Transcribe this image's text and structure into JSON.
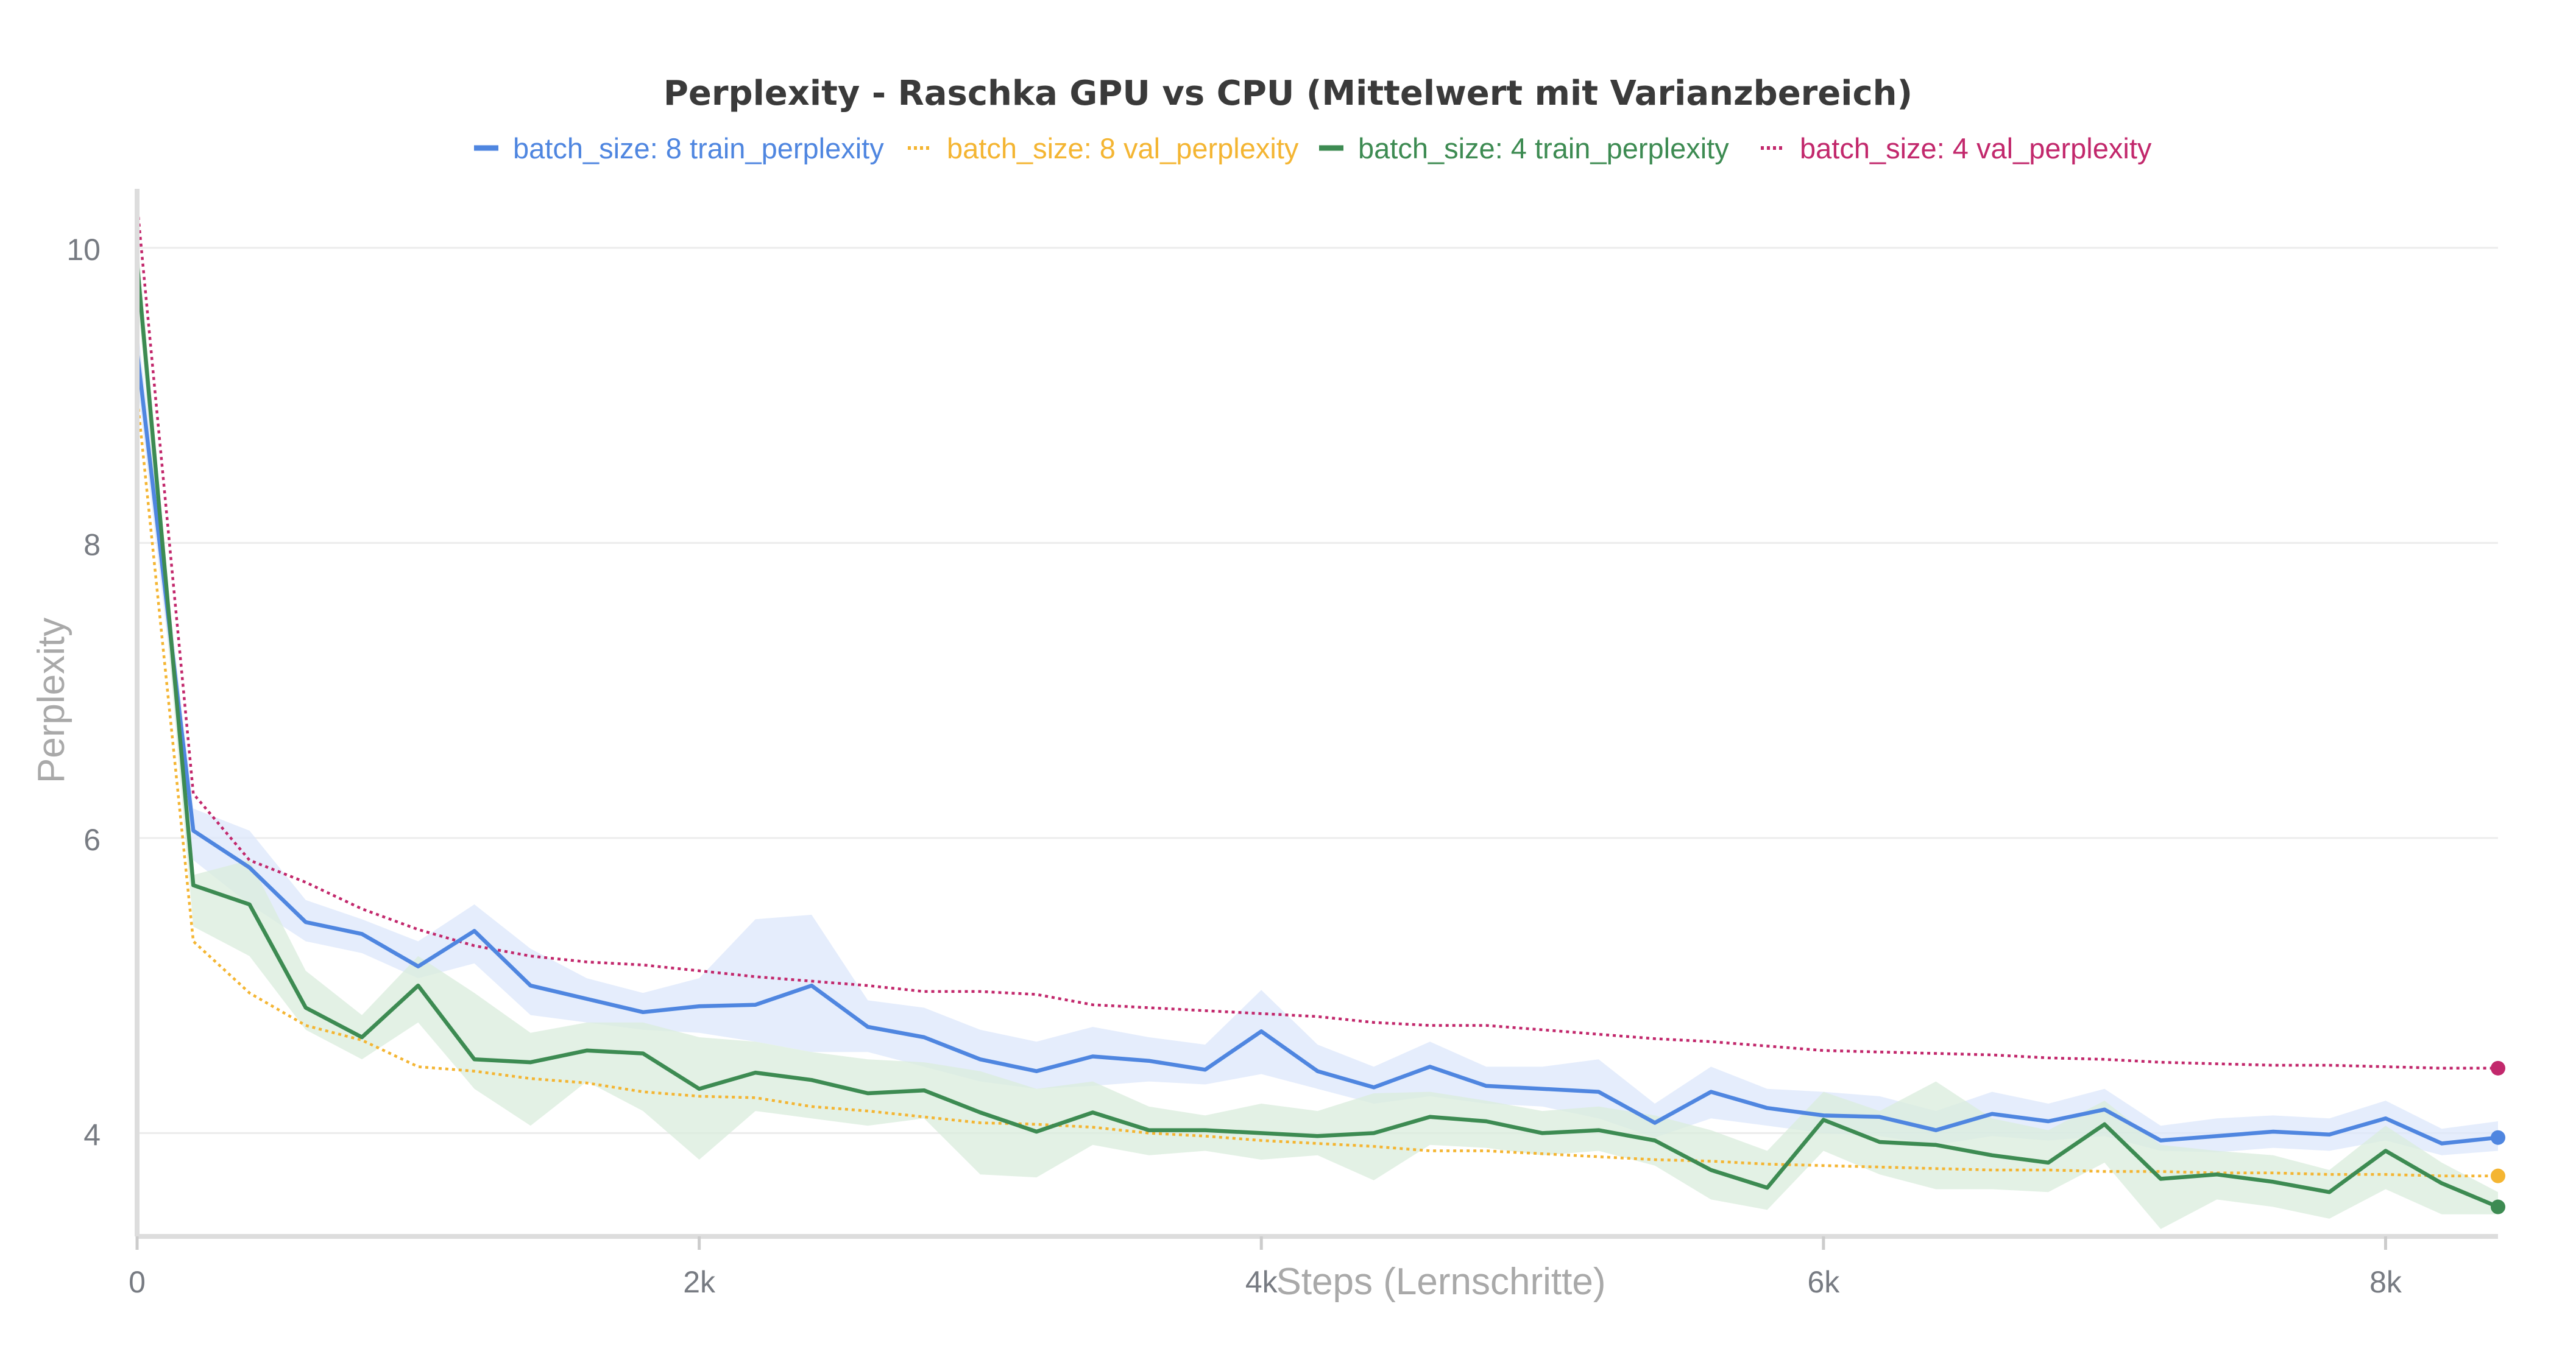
{
  "chart_data": {
    "type": "line",
    "title": "Perplexity - Raschka GPU vs CPU (Mittelwert mit Varianzbereich)",
    "xlabel": "Steps (Lernschritte)",
    "ylabel": "Perplexity",
    "xlim": [
      0,
      8400
    ],
    "ylim": [
      3.3,
      10.4
    ],
    "x_ticks": [
      0,
      2000,
      4000,
      6000,
      8000
    ],
    "x_tick_labels": [
      "0",
      "2k",
      "4k",
      "6k",
      "8k"
    ],
    "y_ticks": [
      4,
      6,
      8,
      10
    ],
    "y_tick_labels": [
      "4",
      "6",
      "8",
      "10"
    ],
    "grid": true,
    "legend_position": "top",
    "x": [
      0,
      200,
      400,
      600,
      800,
      1000,
      1200,
      1400,
      1600,
      1800,
      2000,
      2200,
      2400,
      2600,
      2800,
      3000,
      3200,
      3400,
      3600,
      3800,
      4000,
      4200,
      4400,
      4600,
      4800,
      5000,
      5200,
      5400,
      5600,
      5800,
      6000,
      6200,
      6400,
      6600,
      6800,
      7000,
      7200,
      7400,
      7600,
      7800,
      8000,
      8200,
      8400
    ],
    "series": [
      {
        "name": "batch_size: 8 train_perplexity",
        "color": "#4f86e0",
        "style": "solid",
        "band_color": "#dce7fb",
        "values": [
          9.3,
          6.05,
          5.8,
          5.43,
          5.35,
          5.13,
          5.37,
          5.0,
          4.91,
          4.82,
          4.86,
          4.87,
          5.0,
          4.72,
          4.65,
          4.5,
          4.42,
          4.52,
          4.49,
          4.43,
          4.69,
          4.42,
          4.31,
          4.45,
          4.32,
          4.3,
          4.28,
          4.07,
          4.28,
          4.17,
          4.12,
          4.11,
          4.02,
          4.13,
          4.08,
          4.16,
          3.95,
          3.98,
          4.01,
          3.99,
          4.1,
          3.93,
          3.97
        ],
        "lower": [
          9.1,
          5.85,
          5.55,
          5.3,
          5.22,
          5.05,
          5.15,
          4.8,
          4.75,
          4.7,
          4.68,
          4.62,
          4.55,
          4.55,
          4.45,
          4.35,
          4.3,
          4.32,
          4.35,
          4.33,
          4.4,
          4.3,
          4.2,
          4.25,
          4.2,
          4.18,
          4.1,
          3.97,
          4.1,
          4.05,
          4.0,
          3.98,
          3.92,
          3.98,
          3.95,
          3.98,
          3.88,
          3.87,
          3.9,
          3.88,
          3.95,
          3.85,
          3.88
        ],
        "upper": [
          9.5,
          6.2,
          6.05,
          5.58,
          5.45,
          5.3,
          5.55,
          5.25,
          5.05,
          4.95,
          5.05,
          5.45,
          5.48,
          4.9,
          4.85,
          4.7,
          4.62,
          4.72,
          4.65,
          4.6,
          4.97,
          4.6,
          4.45,
          4.62,
          4.45,
          4.45,
          4.5,
          4.2,
          4.45,
          4.3,
          4.28,
          4.25,
          4.15,
          4.28,
          4.2,
          4.3,
          4.05,
          4.1,
          4.12,
          4.1,
          4.22,
          4.03,
          4.08
        ]
      },
      {
        "name": "batch_size: 8 val_perplexity",
        "color": "#f4b532",
        "style": "dotted",
        "values": [
          9.0,
          5.3,
          4.95,
          4.73,
          4.63,
          4.45,
          4.42,
          4.37,
          4.34,
          4.28,
          4.25,
          4.24,
          4.18,
          4.15,
          4.11,
          4.07,
          4.06,
          4.04,
          4.0,
          3.98,
          3.95,
          3.93,
          3.91,
          3.88,
          3.88,
          3.86,
          3.84,
          3.82,
          3.81,
          3.79,
          3.78,
          3.77,
          3.76,
          3.75,
          3.75,
          3.74,
          3.74,
          3.73,
          3.73,
          3.72,
          3.72,
          3.71,
          3.71
        ]
      },
      {
        "name": "batch_size: 4 train_perplexity",
        "color": "#3d8b52",
        "style": "solid",
        "band_color": "#d9ecdc",
        "values": [
          9.9,
          5.68,
          5.55,
          4.85,
          4.65,
          5.0,
          4.5,
          4.48,
          4.56,
          4.54,
          4.3,
          4.41,
          4.36,
          4.27,
          4.29,
          4.14,
          4.01,
          4.14,
          4.02,
          4.02,
          4.0,
          3.98,
          4.0,
          4.11,
          4.08,
          4.0,
          4.02,
          3.95,
          3.75,
          3.63,
          4.09,
          3.94,
          3.92,
          3.85,
          3.8,
          4.06,
          3.69,
          3.72,
          3.67,
          3.6,
          3.88,
          3.66,
          3.5
        ],
        "lower": [
          9.7,
          5.4,
          5.2,
          4.7,
          4.5,
          4.75,
          4.3,
          4.05,
          4.35,
          4.15,
          3.82,
          4.15,
          4.1,
          4.05,
          4.1,
          3.72,
          3.7,
          3.92,
          3.85,
          3.88,
          3.82,
          3.85,
          3.68,
          3.92,
          3.9,
          3.85,
          3.88,
          3.78,
          3.55,
          3.48,
          3.88,
          3.72,
          3.62,
          3.62,
          3.6,
          3.8,
          3.35,
          3.55,
          3.5,
          3.42,
          3.62,
          3.45,
          3.45
        ],
        "upper": [
          10.1,
          5.75,
          5.85,
          5.1,
          4.8,
          5.2,
          4.95,
          4.68,
          4.75,
          4.75,
          4.65,
          4.62,
          4.55,
          4.5,
          4.48,
          4.42,
          4.3,
          4.35,
          4.18,
          4.12,
          4.2,
          4.15,
          4.27,
          4.28,
          4.22,
          4.15,
          4.18,
          4.12,
          4.02,
          3.88,
          4.28,
          4.15,
          4.35,
          4.1,
          4.02,
          4.22,
          3.92,
          3.88,
          3.85,
          3.75,
          4.05,
          3.8,
          3.6
        ]
      },
      {
        "name": "batch_size: 4 val_perplexity",
        "color": "#c2286c",
        "style": "dotted",
        "values": [
          10.3,
          6.3,
          5.85,
          5.7,
          5.52,
          5.38,
          5.27,
          5.2,
          5.16,
          5.14,
          5.1,
          5.06,
          5.03,
          5.0,
          4.96,
          4.96,
          4.94,
          4.87,
          4.85,
          4.83,
          4.81,
          4.79,
          4.75,
          4.73,
          4.73,
          4.7,
          4.67,
          4.64,
          4.62,
          4.59,
          4.56,
          4.55,
          4.54,
          4.53,
          4.51,
          4.5,
          4.48,
          4.47,
          4.46,
          4.46,
          4.45,
          4.44,
          4.44
        ]
      }
    ]
  }
}
